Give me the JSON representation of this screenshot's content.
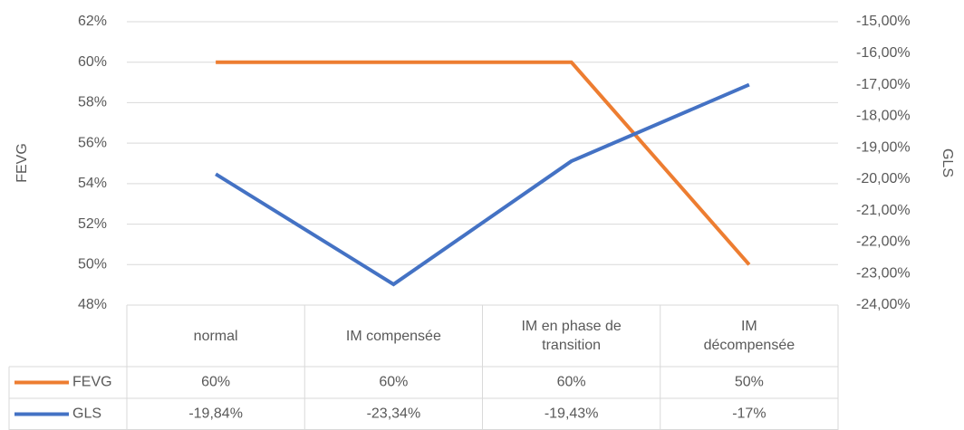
{
  "chart_data": {
    "type": "line",
    "categories": [
      "normal",
      "IM compensée",
      "IM en phase de transition",
      "IM décompensée"
    ],
    "ylabel": "FEVG",
    "y2label": "GLS",
    "ylim": [
      48,
      62
    ],
    "yticks": [
      {
        "value": 48,
        "label": "48%"
      },
      {
        "value": 50,
        "label": "50%"
      },
      {
        "value": 52,
        "label": "52%"
      },
      {
        "value": 54,
        "label": "54%"
      },
      {
        "value": 56,
        "label": "56%"
      },
      {
        "value": 58,
        "label": "58%"
      },
      {
        "value": 60,
        "label": "60%"
      },
      {
        "value": 62,
        "label": "62%"
      }
    ],
    "y2lim": [
      -24,
      -15
    ],
    "y2ticks": [
      {
        "value": -24,
        "label": "-24,00%"
      },
      {
        "value": -23,
        "label": "-23,00%"
      },
      {
        "value": -22,
        "label": "-22,00%"
      },
      {
        "value": -21,
        "label": "-21,00%"
      },
      {
        "value": -20,
        "label": "-20,00%"
      },
      {
        "value": -19,
        "label": "-19,00%"
      },
      {
        "value": -18,
        "label": "-18,00%"
      },
      {
        "value": -17,
        "label": "-17,00%"
      },
      {
        "value": -16,
        "label": "-16,00%"
      },
      {
        "value": -15,
        "label": "-15,00%"
      }
    ],
    "grid": true,
    "series": [
      {
        "name": "FEVG",
        "color": "#ed7d31",
        "values": [
          60,
          60,
          60,
          50
        ],
        "value_labels": [
          "60%",
          "60%",
          "60%",
          "50%"
        ]
      },
      {
        "name": "GLS",
        "color": "#4472c4",
        "axis": "y2",
        "values": [
          -19.84,
          -23.34,
          -19.43,
          -17
        ],
        "value_labels": [
          "-19,84%",
          "-23,34%",
          "-19,43%",
          "-17%"
        ]
      }
    ]
  }
}
